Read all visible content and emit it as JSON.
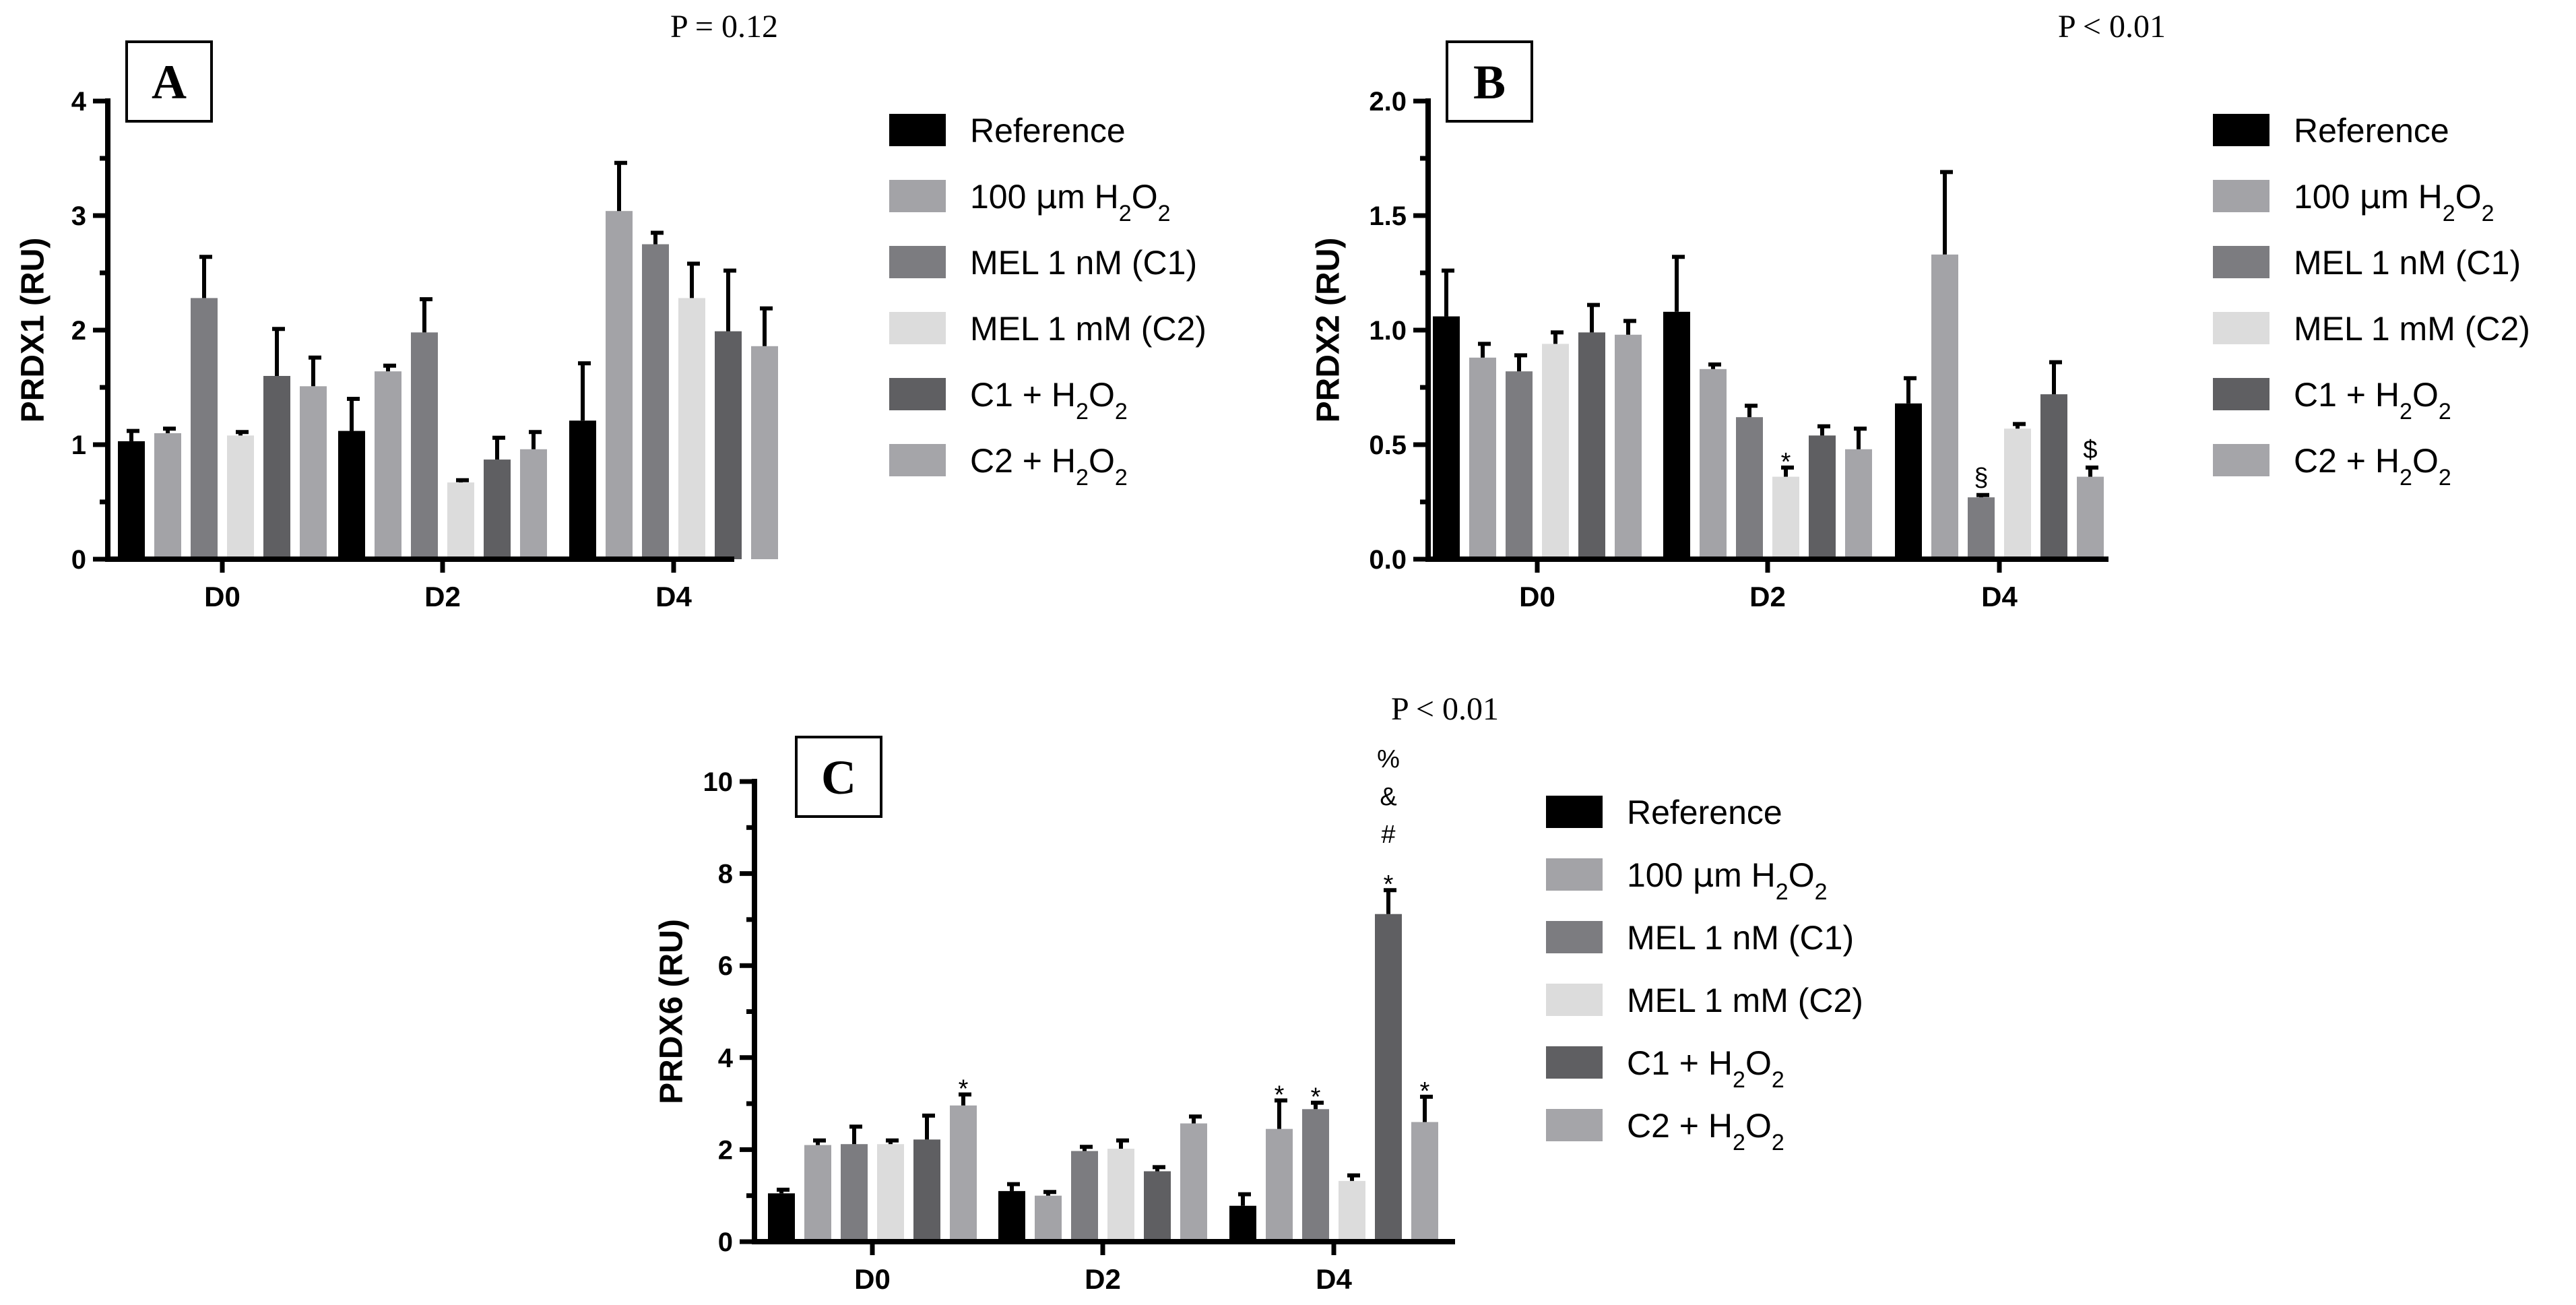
{
  "legend": [
    {
      "label": "Reference",
      "plain": "Reference",
      "color": "#000000"
    },
    {
      "label": "100 μm H2O2",
      "plain": "100 μm H",
      "color": "#a3a3a7"
    },
    {
      "label": "MEL 1 nM (C1)",
      "plain": "MEL 1 nM (C1)",
      "color": "#7c7c80"
    },
    {
      "label": "MEL 1 mM (C2)",
      "plain": "MEL 1 mM (C2)",
      "color": "#dcdcdc"
    },
    {
      "label": "C1 + H2O2",
      "plain": "C1 + H",
      "color": "#5f5f62"
    },
    {
      "label": "C2 + H2O2",
      "plain": "C2 + H",
      "color": "#a5a5a9"
    }
  ],
  "chart_data": [
    {
      "panel": "A",
      "type": "bar",
      "ylabel": "PRDX1 (RU)",
      "ylim": [
        0,
        4
      ],
      "yticks": [
        "0",
        "1",
        "2",
        "3",
        "4"
      ],
      "p_value": "P = 0.12",
      "categories": [
        "D0",
        "D2",
        "D4"
      ],
      "series": [
        {
          "name": "Reference",
          "values": [
            1.03,
            1.12,
            1.21
          ],
          "errors": [
            0.09,
            0.28,
            0.5
          ]
        },
        {
          "name": "100 µm H2O2",
          "values": [
            1.1,
            1.64,
            3.04
          ],
          "errors": [
            0.04,
            0.05,
            0.42
          ]
        },
        {
          "name": "MEL 1 nM (C1)",
          "values": [
            2.28,
            1.98,
            2.75
          ],
          "errors": [
            0.36,
            0.29,
            0.1
          ]
        },
        {
          "name": "MEL 1 mM (C2)",
          "values": [
            1.08,
            0.67,
            2.28
          ],
          "errors": [
            0.03,
            0.02,
            0.3
          ]
        },
        {
          "name": "C1 + H2O2",
          "values": [
            1.6,
            0.87,
            1.99
          ],
          "errors": [
            0.41,
            0.19,
            0.53
          ]
        },
        {
          "name": "C2 + H2O2",
          "values": [
            1.51,
            0.96,
            1.86
          ],
          "errors": [
            0.25,
            0.15,
            0.33
          ]
        }
      ],
      "annotations": []
    },
    {
      "panel": "B",
      "type": "bar",
      "ylabel": "PRDX2 (RU)",
      "ylim": [
        0,
        2
      ],
      "yticks": [
        "0.0",
        "0.5",
        "1.0",
        "1.5",
        "2.0"
      ],
      "p_value": "P < 0.01",
      "categories": [
        "D0",
        "D2",
        "D4"
      ],
      "series": [
        {
          "name": "Reference",
          "values": [
            1.06,
            1.08,
            0.68
          ],
          "errors": [
            0.2,
            0.24,
            0.11
          ]
        },
        {
          "name": "100 µm H2O2",
          "values": [
            0.88,
            0.83,
            1.33
          ],
          "errors": [
            0.06,
            0.02,
            0.36
          ]
        },
        {
          "name": "MEL 1 nM (C1)",
          "values": [
            0.82,
            0.62,
            0.27
          ],
          "errors": [
            0.07,
            0.05,
            0.01
          ]
        },
        {
          "name": "MEL 1 mM (C2)",
          "values": [
            0.94,
            0.36,
            0.57
          ],
          "errors": [
            0.05,
            0.04,
            0.02
          ]
        },
        {
          "name": "C1 + H2O2",
          "values": [
            0.99,
            0.54,
            0.72
          ],
          "errors": [
            0.12,
            0.04,
            0.14
          ]
        },
        {
          "name": "C2 + H2O2",
          "values": [
            0.98,
            0.48,
            0.36
          ],
          "errors": [
            0.06,
            0.09,
            0.04
          ]
        }
      ],
      "annotations": [
        {
          "category": "D2",
          "series": 3,
          "text": "*"
        },
        {
          "category": "D4",
          "series": 2,
          "text": "§"
        },
        {
          "category": "D4",
          "series": 5,
          "text": "$"
        }
      ]
    },
    {
      "panel": "C",
      "type": "bar",
      "ylabel": "PRDX6 (RU)",
      "ylim": [
        0,
        10
      ],
      "yticks": [
        "0",
        "2",
        "4",
        "6",
        "8",
        "10"
      ],
      "p_value": "P < 0.01",
      "categories": [
        "D0",
        "D2",
        "D4"
      ],
      "series": [
        {
          "name": "Reference",
          "values": [
            1.05,
            1.1,
            0.78
          ],
          "errors": [
            0.08,
            0.15,
            0.25
          ]
        },
        {
          "name": "100 µm H2O2",
          "values": [
            2.1,
            1.0,
            2.45
          ],
          "errors": [
            0.1,
            0.08,
            0.62
          ]
        },
        {
          "name": "MEL 1 nM (C1)",
          "values": [
            2.12,
            1.97,
            2.88
          ],
          "errors": [
            0.38,
            0.09,
            0.14
          ]
        },
        {
          "name": "MEL 1 mM (C2)",
          "values": [
            2.12,
            2.02,
            1.32
          ],
          "errors": [
            0.08,
            0.18,
            0.12
          ]
        },
        {
          "name": "C1 + H2O2",
          "values": [
            2.22,
            1.53,
            7.12
          ],
          "errors": [
            0.52,
            0.09,
            0.52
          ]
        },
        {
          "name": "C2 + H2O2",
          "values": [
            2.96,
            2.57,
            2.6
          ],
          "errors": [
            0.24,
            0.15,
            0.55
          ]
        }
      ],
      "annotations": [
        {
          "category": "D0",
          "series": 5,
          "text": "*"
        },
        {
          "category": "D4",
          "series": 1,
          "text": "*"
        },
        {
          "category": "D4",
          "series": 2,
          "text": "*"
        },
        {
          "category": "D4",
          "series": 4,
          "text": "*",
          "stack": [
            "*",
            "#",
            "&",
            "%"
          ]
        },
        {
          "category": "D4",
          "series": 5,
          "text": "*"
        }
      ]
    }
  ]
}
